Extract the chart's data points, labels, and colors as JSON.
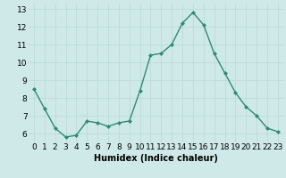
{
  "x": [
    0,
    1,
    2,
    3,
    4,
    5,
    6,
    7,
    8,
    9,
    10,
    11,
    12,
    13,
    14,
    15,
    16,
    17,
    18,
    19,
    20,
    21,
    22,
    23
  ],
  "y": [
    8.5,
    7.4,
    6.3,
    5.8,
    5.9,
    6.7,
    6.6,
    6.4,
    6.6,
    6.7,
    8.4,
    10.4,
    10.5,
    11.0,
    12.2,
    12.8,
    12.1,
    10.5,
    9.4,
    8.3,
    7.5,
    7.0,
    6.3,
    6.1
  ],
  "line_color": "#2e8b72",
  "marker": "D",
  "marker_size": 2.0,
  "bg_color": "#cee9e8",
  "grid_color": "#b8d8d6",
  "xlabel": "Humidex (Indice chaleur)",
  "ylim": [
    5.5,
    13.3
  ],
  "xlim": [
    -0.5,
    23.5
  ],
  "yticks": [
    6,
    7,
    8,
    9,
    10,
    11,
    12,
    13
  ],
  "xticks": [
    0,
    1,
    2,
    3,
    4,
    5,
    6,
    7,
    8,
    9,
    10,
    11,
    12,
    13,
    14,
    15,
    16,
    17,
    18,
    19,
    20,
    21,
    22,
    23
  ],
  "xlabel_fontsize": 7.0,
  "tick_fontsize": 6.5,
  "line_width": 1.0
}
